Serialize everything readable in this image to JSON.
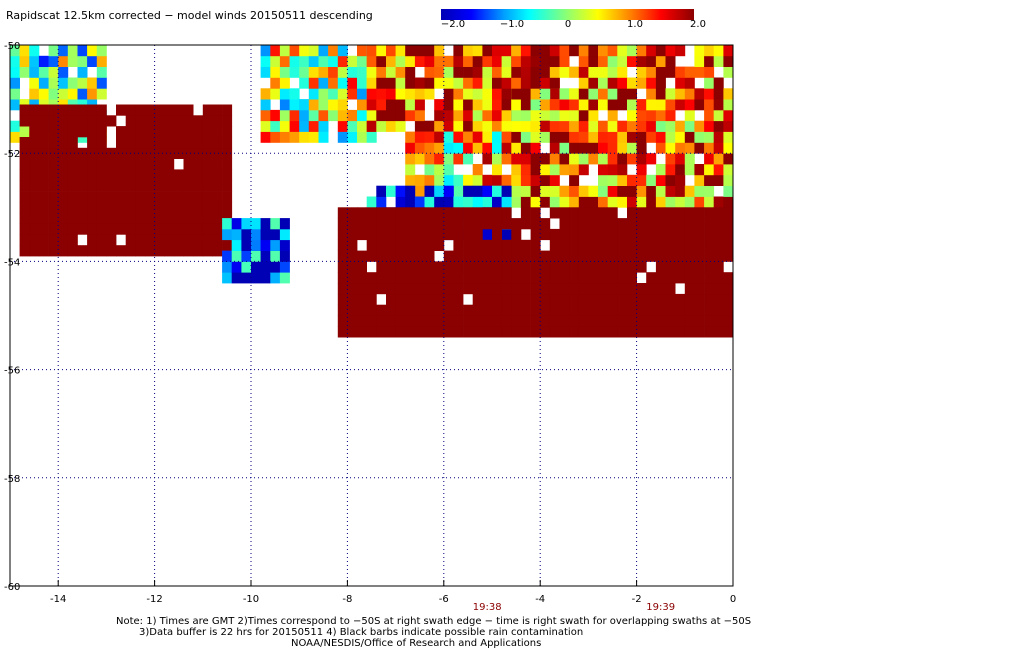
{
  "title": "Rapidscat 12.5km corrected − model winds 20150511 descending",
  "colorbar": {
    "tick_labels": [
      "−2.0",
      "−1.0",
      "0",
      "1.0",
      "2.0"
    ],
    "tick_values": [
      -2.0,
      -1.0,
      0,
      1.0,
      2.0
    ],
    "range": [
      -2.0,
      2.0
    ]
  },
  "axes": {
    "x_ticks": [
      "-14",
      "-12",
      "-10",
      "-8",
      "-6",
      "-4",
      "-2",
      "0"
    ],
    "x_tick_values": [
      -14,
      -12,
      -10,
      -8,
      -6,
      -4,
      -2,
      0
    ],
    "y_ticks": [
      "-50",
      "-52",
      "-54",
      "-56",
      "-58",
      "-60"
    ],
    "y_tick_values": [
      -50,
      -52,
      -54,
      -56,
      -58,
      -60
    ],
    "xlim": [
      -15,
      0
    ],
    "ylim": [
      -60,
      -50
    ],
    "grid": true,
    "grid_style": "dotted"
  },
  "times": [
    {
      "label": "19:38",
      "lon": -5.1
    },
    {
      "label": "19:39",
      "lon": -1.5
    }
  ],
  "time_color": "#8b0000",
  "notes": [
    "Note: 1) Times are GMT 2)Times correspond to −50S at right swath edge − time is right swath for overlapping swaths at −50S",
    "3)Data buffer is 22 hrs for 20150511 4) Black barbs indicate possible rain contamination",
    "NOAA/NESDIS/Office of Research and Applications"
  ],
  "chart_data": {
    "type": "heatmap",
    "title": "Rapidscat 12.5km corrected − model winds 20150511 descending",
    "xlabel": "",
    "ylabel": "",
    "xlim": [
      -15,
      0
    ],
    "ylim": [
      -60,
      -50
    ],
    "value_range": [
      -2.0,
      2.0
    ],
    "cell_size_deg": 0.2,
    "regions": [
      {
        "name": "",
        "lon": [
          -15.0,
          -13.0
        ],
        "lat": [
          -51.8,
          -50.1
        ],
        "mean_value": -0.3
      },
      {
        "name": "",
        "lon": [
          -14.8,
          -10.4
        ],
        "lat": [
          -53.9,
          -51.2
        ],
        "mean_value": 2.0
      },
      {
        "name": "",
        "lon": [
          -10.6,
          -9.2
        ],
        "lat": [
          -54.4,
          -53.2
        ],
        "mean_value": -1.5
      },
      {
        "name": "",
        "lon": [
          -9.8,
          -7.4
        ],
        "lat": [
          -51.8,
          -50.1
        ],
        "mean_value": 0.2
      },
      {
        "name": "",
        "lon": [
          -7.6,
          -3.6
        ],
        "lat": [
          -51.6,
          -50.0
        ],
        "mean_value": 1.4
      },
      {
        "name": "",
        "lon": [
          -6.8,
          -4.6
        ],
        "lat": [
          -53.2,
          -51.6
        ],
        "mean_value": 0.6
      },
      {
        "name": "",
        "lon": [
          -4.6,
          0.0
        ],
        "lat": [
          -53.0,
          -50.0
        ],
        "mean_value": 1.2
      },
      {
        "name": "",
        "lon": [
          -7.6,
          -4.6
        ],
        "lat": [
          -53.6,
          -52.6
        ],
        "mean_value": -1.6
      },
      {
        "name": "",
        "lon": [
          -8.2,
          0.0
        ],
        "lat": [
          -55.4,
          -53.0
        ],
        "mean_value": 2.0
      }
    ]
  }
}
